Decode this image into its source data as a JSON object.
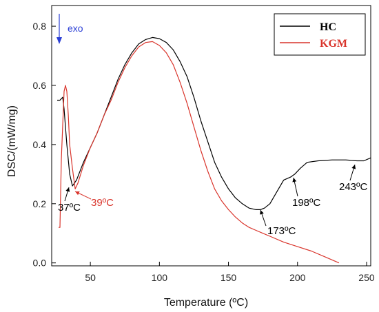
{
  "chart_data": {
    "type": "line",
    "title": "",
    "xlabel": "Temperature (ºC)",
    "ylabel": "DSC/(mW/mg)",
    "xlim": [
      22,
      253
    ],
    "ylim": [
      -0.01,
      0.87
    ],
    "xticks": [
      50,
      100,
      150,
      200,
      250
    ],
    "yticks": [
      0.0,
      0.2,
      0.4,
      0.6,
      0.8
    ],
    "ytick_labels": [
      "0.0",
      "0.2",
      "0.4",
      "0.6",
      "0.8"
    ],
    "grid": false,
    "legend_position": "top-right",
    "exo_label": "exo",
    "series": [
      {
        "name": "HC",
        "color": "#000000",
        "points": [
          [
            26,
            0.55
          ],
          [
            28,
            0.55
          ],
          [
            30,
            0.56
          ],
          [
            31,
            0.52
          ],
          [
            33,
            0.4
          ],
          [
            35,
            0.3
          ],
          [
            37,
            0.26
          ],
          [
            40,
            0.28
          ],
          [
            45,
            0.34
          ],
          [
            50,
            0.39
          ],
          [
            55,
            0.44
          ],
          [
            60,
            0.5
          ],
          [
            65,
            0.56
          ],
          [
            70,
            0.62
          ],
          [
            75,
            0.67
          ],
          [
            80,
            0.71
          ],
          [
            85,
            0.74
          ],
          [
            90,
            0.755
          ],
          [
            95,
            0.762
          ],
          [
            100,
            0.758
          ],
          [
            105,
            0.745
          ],
          [
            110,
            0.72
          ],
          [
            115,
            0.68
          ],
          [
            120,
            0.63
          ],
          [
            125,
            0.56
          ],
          [
            130,
            0.48
          ],
          [
            135,
            0.41
          ],
          [
            140,
            0.34
          ],
          [
            145,
            0.29
          ],
          [
            150,
            0.25
          ],
          [
            155,
            0.22
          ],
          [
            160,
            0.2
          ],
          [
            165,
            0.185
          ],
          [
            170,
            0.18
          ],
          [
            173,
            0.18
          ],
          [
            176,
            0.185
          ],
          [
            180,
            0.2
          ],
          [
            185,
            0.24
          ],
          [
            190,
            0.28
          ],
          [
            195,
            0.29
          ],
          [
            198,
            0.3
          ],
          [
            202,
            0.32
          ],
          [
            207,
            0.34
          ],
          [
            215,
            0.345
          ],
          [
            225,
            0.348
          ],
          [
            235,
            0.348
          ],
          [
            243,
            0.345
          ],
          [
            248,
            0.345
          ],
          [
            253,
            0.355
          ]
        ]
      },
      {
        "name": "KGM",
        "color": "#d9342b",
        "points": [
          [
            27,
            0.12
          ],
          [
            28,
            0.12
          ],
          [
            29,
            0.35
          ],
          [
            31,
            0.58
          ],
          [
            32,
            0.6
          ],
          [
            33,
            0.58
          ],
          [
            34,
            0.5
          ],
          [
            35,
            0.4
          ],
          [
            37,
            0.32
          ],
          [
            39,
            0.25
          ],
          [
            41,
            0.27
          ],
          [
            45,
            0.33
          ],
          [
            50,
            0.39
          ],
          [
            55,
            0.44
          ],
          [
            60,
            0.5
          ],
          [
            65,
            0.55
          ],
          [
            70,
            0.61
          ],
          [
            75,
            0.66
          ],
          [
            80,
            0.7
          ],
          [
            85,
            0.73
          ],
          [
            90,
            0.745
          ],
          [
            95,
            0.748
          ],
          [
            100,
            0.735
          ],
          [
            105,
            0.71
          ],
          [
            110,
            0.67
          ],
          [
            115,
            0.61
          ],
          [
            120,
            0.54
          ],
          [
            125,
            0.46
          ],
          [
            130,
            0.38
          ],
          [
            135,
            0.31
          ],
          [
            140,
            0.25
          ],
          [
            145,
            0.21
          ],
          [
            150,
            0.18
          ],
          [
            155,
            0.155
          ],
          [
            160,
            0.135
          ],
          [
            165,
            0.12
          ],
          [
            170,
            0.11
          ],
          [
            175,
            0.1
          ],
          [
            180,
            0.09
          ],
          [
            190,
            0.07
          ],
          [
            200,
            0.055
          ],
          [
            210,
            0.04
          ],
          [
            220,
            0.02
          ],
          [
            230,
            0.0
          ]
        ]
      }
    ],
    "annotations": [
      {
        "text": "37ºC",
        "color": "#000000"
      },
      {
        "text": "39ºC",
        "color": "#d9342b"
      },
      {
        "text": "173ºC",
        "color": "#000000"
      },
      {
        "text": "198ºC",
        "color": "#000000"
      },
      {
        "text": "243ºC",
        "color": "#000000"
      }
    ]
  }
}
